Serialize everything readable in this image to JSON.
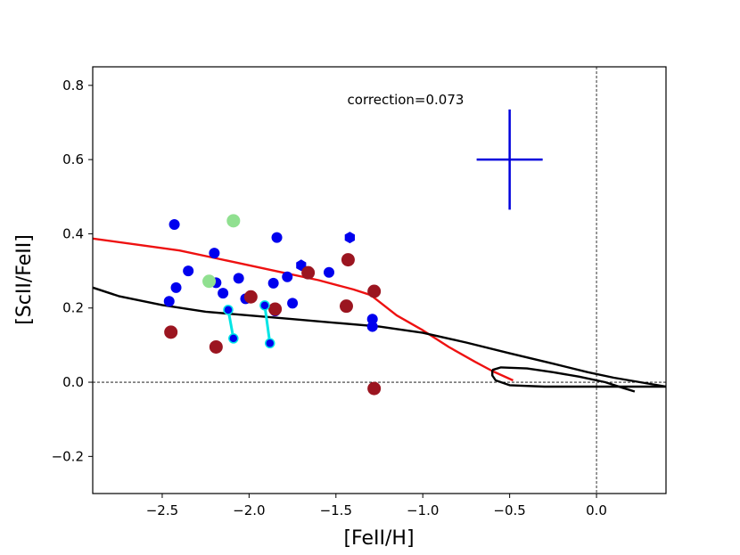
{
  "chart_data": {
    "type": "scatter",
    "xlabel": "[FeII/H]",
    "ylabel": "[ScII/FeII]",
    "xlim": [
      -2.9,
      0.4
    ],
    "ylim": [
      -0.3,
      0.85
    ],
    "x_ticks": [
      -2.5,
      -2.0,
      -1.5,
      -1.0,
      -0.5,
      0.0
    ],
    "x_tick_labels": [
      "−2.5",
      "−2.0",
      "−1.5",
      "−1.0",
      "−0.5",
      "0.0"
    ],
    "y_ticks": [
      -0.2,
      0.0,
      0.2,
      0.4,
      0.6,
      0.8
    ],
    "y_tick_labels": [
      "−0.2",
      "0.0",
      "0.2",
      "0.4",
      "0.6",
      "0.8"
    ],
    "annotation": "correction=0.073",
    "reference_lines": {
      "horizontal_y": 0.0,
      "vertical_x": 0.0,
      "style": "dashed"
    },
    "error_bar": {
      "x": -0.5,
      "y": 0.6,
      "xerr": 0.19,
      "yerr": 0.135,
      "color": "#0000dd"
    },
    "series": [
      {
        "name": "blue dots",
        "marker": "circle",
        "color": "#0000ee",
        "points": [
          [
            -2.43,
            0.425
          ],
          [
            -2.2,
            0.348
          ],
          [
            -1.84,
            0.39
          ],
          [
            -2.35,
            0.3
          ],
          [
            -2.42,
            0.255
          ],
          [
            -2.46,
            0.218
          ],
          [
            -2.19,
            0.268
          ],
          [
            -2.06,
            0.28
          ],
          [
            -2.15,
            0.24
          ],
          [
            -1.86,
            0.267
          ],
          [
            -1.78,
            0.284
          ],
          [
            -1.54,
            0.296
          ],
          [
            -2.02,
            0.225
          ],
          [
            -1.75,
            0.213
          ],
          [
            -1.85,
            0.192
          ],
          [
            -1.29,
            0.17
          ],
          [
            -1.29,
            0.15
          ]
        ]
      },
      {
        "name": "blue hexagons",
        "marker": "hexagon",
        "color": "#0000ee",
        "points": [
          [
            -1.42,
            0.39
          ],
          [
            -1.7,
            0.315
          ]
        ]
      },
      {
        "name": "dark red dots",
        "marker": "circle",
        "color": "#9b1520",
        "points": [
          [
            -1.43,
            0.33
          ],
          [
            -1.66,
            0.295
          ],
          [
            -1.28,
            0.245
          ],
          [
            -1.99,
            0.23
          ],
          [
            -1.85,
            0.197
          ],
          [
            -1.44,
            0.205
          ],
          [
            -2.45,
            0.135
          ],
          [
            -2.19,
            0.095
          ],
          [
            -1.28,
            -0.017
          ]
        ]
      },
      {
        "name": "light green dots",
        "marker": "circle",
        "color": "#90e090",
        "points": [
          [
            -2.09,
            0.435
          ],
          [
            -2.23,
            0.272
          ]
        ]
      },
      {
        "name": "cyan connected pairs",
        "marker": "circle-open",
        "color": "#00e5e5",
        "segments": [
          [
            [
              -2.12,
              0.195
            ],
            [
              -2.09,
              0.118
            ]
          ],
          [
            [
              -1.91,
              0.207
            ],
            [
              -1.88,
              0.105
            ]
          ]
        ]
      },
      {
        "name": "red model",
        "marker": "line",
        "color": "#ee1111",
        "points": [
          [
            -2.9,
            0.387
          ],
          [
            -2.6,
            0.368
          ],
          [
            -2.4,
            0.355
          ],
          [
            -2.2,
            0.335
          ],
          [
            -2.0,
            0.315
          ],
          [
            -1.8,
            0.295
          ],
          [
            -1.6,
            0.275
          ],
          [
            -1.4,
            0.25
          ],
          [
            -1.3,
            0.235
          ],
          [
            -1.15,
            0.18
          ],
          [
            -1.0,
            0.14
          ],
          [
            -0.85,
            0.095
          ],
          [
            -0.7,
            0.055
          ],
          [
            -0.6,
            0.03
          ],
          [
            -0.48,
            0.005
          ]
        ]
      },
      {
        "name": "black model",
        "marker": "line",
        "color": "#000000",
        "points": [
          [
            -2.9,
            0.255
          ],
          [
            -2.75,
            0.232
          ],
          [
            -2.5,
            0.208
          ],
          [
            -2.25,
            0.19
          ],
          [
            -2.0,
            0.18
          ],
          [
            -1.75,
            0.17
          ],
          [
            -1.5,
            0.16
          ],
          [
            -1.25,
            0.15
          ],
          [
            -1.0,
            0.133
          ],
          [
            -0.75,
            0.107
          ],
          [
            -0.5,
            0.078
          ],
          [
            -0.25,
            0.05
          ],
          [
            -0.05,
            0.027
          ],
          [
            0.1,
            0.012
          ],
          [
            0.25,
            0.0
          ],
          [
            0.4,
            -0.012
          ]
        ]
      },
      {
        "name": "black model loop",
        "marker": "line",
        "color": "#000000",
        "points": [
          [
            -0.6,
            0.033
          ],
          [
            -0.55,
            0.04
          ],
          [
            -0.4,
            0.037
          ],
          [
            -0.25,
            0.027
          ],
          [
            -0.1,
            0.015
          ],
          [
            0.05,
            0.0
          ],
          [
            0.15,
            -0.015
          ],
          [
            0.22,
            -0.025
          ]
        ]
      },
      {
        "name": "black model tail",
        "marker": "line",
        "color": "#000000",
        "points": [
          [
            -0.6,
            0.033
          ],
          [
            -0.6,
            0.018
          ],
          [
            -0.58,
            0.005
          ],
          [
            -0.5,
            -0.008
          ],
          [
            -0.3,
            -0.012
          ],
          [
            0.0,
            -0.012
          ],
          [
            0.2,
            -0.012
          ],
          [
            0.4,
            -0.012
          ]
        ]
      }
    ]
  }
}
